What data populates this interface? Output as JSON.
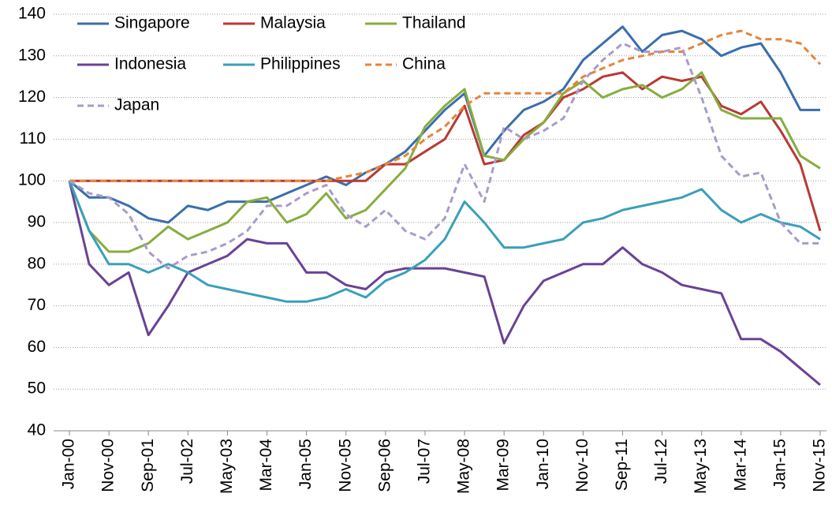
{
  "chart_data": {
    "type": "line",
    "categories": [
      "Jan-00",
      null,
      "Nov-00",
      null,
      "Sep-01",
      null,
      "Jul-02",
      null,
      "May-03",
      null,
      "Mar-04",
      null,
      "Jan-05",
      null,
      "Nov-05",
      null,
      "Sep-06",
      null,
      "Jul-07",
      null,
      "May-08",
      null,
      "Mar-09",
      null,
      "Jan-10",
      null,
      "Nov-10",
      null,
      "Sep-11",
      null,
      "Jul-12",
      null,
      "May-13",
      null,
      "Mar-14",
      null,
      "Jan-15",
      null,
      "Nov-15"
    ],
    "series": [
      {
        "name": "Singapore",
        "color": "#3a6eab",
        "line_style": "solid",
        "values": [
          100,
          96,
          96,
          94,
          91,
          90,
          94,
          93,
          95,
          95,
          95,
          97,
          99,
          101,
          99,
          102,
          104,
          107,
          112,
          117,
          121,
          106,
          112,
          117,
          119,
          122,
          129,
          133,
          137,
          131,
          135,
          136,
          134,
          130,
          132,
          133,
          126,
          117,
          117
        ]
      },
      {
        "name": "Malaysia",
        "color": "#b83a35",
        "line_style": "solid",
        "values": [
          100,
          100,
          100,
          100,
          100,
          100,
          100,
          100,
          100,
          100,
          100,
          100,
          100,
          100,
          100,
          100,
          104,
          104,
          107,
          110,
          118,
          104,
          105,
          111,
          114,
          120,
          122,
          125,
          126,
          122,
          125,
          124,
          125,
          118,
          116,
          119,
          112,
          104,
          88
        ]
      },
      {
        "name": "Thailand",
        "color": "#86ad3f",
        "line_style": "solid",
        "values": [
          100,
          88,
          83,
          83,
          85,
          89,
          86,
          88,
          90,
          95,
          96,
          90,
          92,
          97,
          91,
          93,
          98,
          103,
          113,
          118,
          122,
          106,
          105,
          110,
          114,
          121,
          124,
          120,
          122,
          123,
          120,
          122,
          126,
          117,
          115,
          115,
          115,
          106,
          103
        ]
      },
      {
        "name": "Indonesia",
        "color": "#6a4295",
        "line_style": "solid",
        "values": [
          100,
          80,
          75,
          78,
          63,
          70,
          78,
          80,
          82,
          86,
          85,
          85,
          78,
          78,
          75,
          74,
          78,
          79,
          79,
          79,
          78,
          77,
          61,
          70,
          76,
          78,
          80,
          80,
          84,
          80,
          78,
          75,
          74,
          73,
          62,
          62,
          59,
          55,
          51
        ]
      },
      {
        "name": "Philippines",
        "color": "#3a9fba",
        "line_style": "solid",
        "values": [
          100,
          88,
          80,
          80,
          78,
          80,
          78,
          75,
          74,
          73,
          72,
          71,
          71,
          72,
          74,
          72,
          76,
          78,
          81,
          86,
          95,
          90,
          84,
          84,
          85,
          86,
          90,
          91,
          93,
          94,
          95,
          96,
          98,
          93,
          90,
          92,
          90,
          89,
          86
        ]
      },
      {
        "name": "China",
        "color": "#e6843a",
        "line_style": "dashed",
        "values": [
          100,
          100,
          100,
          100,
          100,
          100,
          100,
          100,
          100,
          100,
          100,
          100,
          100,
          100,
          101,
          102,
          104,
          106,
          110,
          113,
          118,
          121,
          121,
          121,
          121,
          121,
          125,
          127,
          129,
          130,
          131,
          131,
          133,
          135,
          136,
          134,
          134,
          133,
          128
        ]
      },
      {
        "name": "Japan",
        "color": "#a99bc9",
        "line_style": "dashed",
        "values": [
          100,
          97,
          96,
          92,
          83,
          79,
          82,
          83,
          85,
          88,
          94,
          94,
          97,
          99,
          92,
          89,
          93,
          88,
          86,
          91,
          104,
          95,
          113,
          110,
          112,
          115,
          124,
          129,
          133,
          131,
          131,
          132,
          120,
          106,
          101,
          102,
          90,
          85,
          85
        ]
      }
    ],
    "ylim": [
      40,
      140
    ],
    "yticks": [
      40,
      50,
      60,
      70,
      80,
      90,
      100,
      110,
      120,
      130,
      140
    ],
    "grid": true,
    "legend": "top-left"
  }
}
